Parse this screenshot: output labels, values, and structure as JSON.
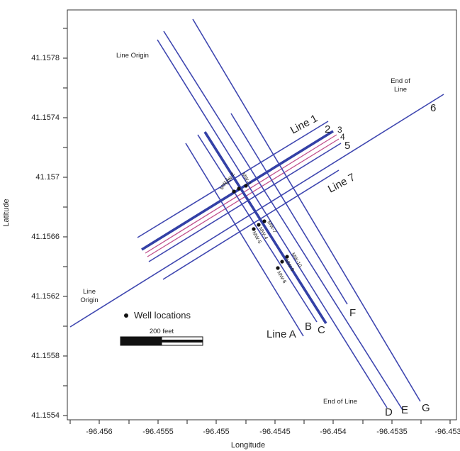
{
  "map": {
    "x_axis_title": "Longitude",
    "y_axis_title": "Latitude",
    "x_ticks": [
      "-96.456",
      "-96.4555",
      "-96.455",
      "-96.4545",
      "-96.454",
      "-96.4535",
      "-96.453"
    ],
    "y_ticks": [
      "41.1578",
      "41.1574",
      "41.157",
      "41.1566",
      "41.1562",
      "41.1558",
      "41.1554"
    ],
    "legend_label": "Well locations",
    "scale_label": "200 feet",
    "annotations": {
      "line_origin_top": "Line Origin",
      "end_of_line_top": "End of\nLine",
      "line_origin_left": "Line\nOrigin",
      "end_of_line_bottom": "End of Line"
    },
    "line_labels": {
      "line1": "Line 1",
      "line7": "Line 7",
      "lineA": "Line A",
      "n2": "2",
      "n3": "3",
      "n4": "4",
      "n5": "5",
      "n6": "6",
      "B": "B",
      "C": "C",
      "D": "D",
      "E": "E",
      "F": "F",
      "G": "G"
    },
    "wells": [
      "MW-1",
      "MW-2",
      "MW-3",
      "MW-4",
      "MW-5",
      "MW-6",
      "MW-7",
      "MW-8",
      "MW-9",
      "MW-10"
    ],
    "colors": {
      "line": "#3f47b0",
      "line_thick": "#3340a6",
      "pink": "#c0508c",
      "frame": "#333333"
    }
  }
}
